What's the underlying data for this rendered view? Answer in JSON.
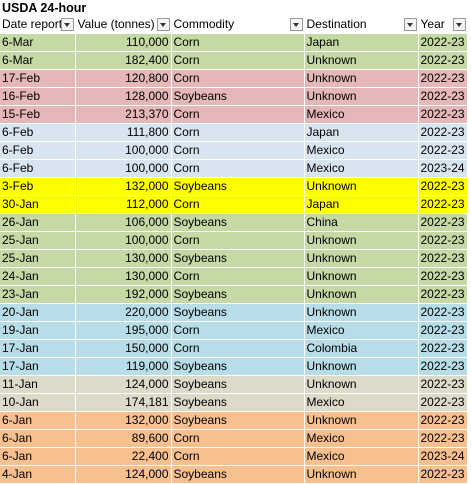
{
  "title": "USDA 24-hour",
  "columns": [
    "Date reported",
    "Value (tonnes)",
    "Commodity",
    "Destination",
    "Year"
  ],
  "colors": {
    "green": "#c5d9a5",
    "pink": "#e6b7b8",
    "lightblue": "#d9e4f1",
    "yellow": "#ffff00",
    "blue": "#b7dde8",
    "beige": "#dcdac9",
    "orange": "#f9c08f"
  },
  "rows": [
    {
      "date": "6-Mar",
      "value": "110,000",
      "commodity": "Corn",
      "destination": "Japan",
      "year": "2022-23",
      "group": "green"
    },
    {
      "date": "6-Mar",
      "value": "182,400",
      "commodity": "Corn",
      "destination": "Unknown",
      "year": "2022-23",
      "group": "green"
    },
    {
      "date": "17-Feb",
      "value": "120,800",
      "commodity": "Corn",
      "destination": "Unknown",
      "year": "2022-23",
      "group": "pink"
    },
    {
      "date": "16-Feb",
      "value": "128,000",
      "commodity": "Soybeans",
      "destination": "Unknown",
      "year": "2022-23",
      "group": "pink"
    },
    {
      "date": "15-Feb",
      "value": "213,370",
      "commodity": "Corn",
      "destination": "Mexico",
      "year": "2022-23",
      "group": "pink"
    },
    {
      "date": "6-Feb",
      "value": "111,800",
      "commodity": "Corn",
      "destination": "Japan",
      "year": "2022-23",
      "group": "lightblue"
    },
    {
      "date": "6-Feb",
      "value": "100,000",
      "commodity": "Corn",
      "destination": "Mexico",
      "year": "2022-23",
      "group": "lightblue"
    },
    {
      "date": "6-Feb",
      "value": "100,000",
      "commodity": "Corn",
      "destination": "Mexico",
      "year": "2023-24",
      "group": "lightblue"
    },
    {
      "date": "3-Feb",
      "value": "132,000",
      "commodity": "Soybeans",
      "destination": "Unknown",
      "year": "2022-23",
      "group": "yellow"
    },
    {
      "date": "30-Jan",
      "value": "112,000",
      "commodity": "Corn",
      "destination": "Japan",
      "year": "2022-23",
      "group": "yellow"
    },
    {
      "date": "26-Jan",
      "value": "106,000",
      "commodity": "Soybeans",
      "destination": "China",
      "year": "2022-23",
      "group": "green"
    },
    {
      "date": "25-Jan",
      "value": "100,000",
      "commodity": "Corn",
      "destination": "Unknown",
      "year": "2022-23",
      "group": "green"
    },
    {
      "date": "25-Jan",
      "value": "130,000",
      "commodity": "Soybeans",
      "destination": "Unknown",
      "year": "2022-23",
      "group": "green"
    },
    {
      "date": "24-Jan",
      "value": "130,000",
      "commodity": "Corn",
      "destination": "Unknown",
      "year": "2022-23",
      "group": "green"
    },
    {
      "date": "23-Jan",
      "value": "192,000",
      "commodity": "Soybeans",
      "destination": "Unknown",
      "year": "2022-23",
      "group": "green"
    },
    {
      "date": "20-Jan",
      "value": "220,000",
      "commodity": "Soybeans",
      "destination": "Unknown",
      "year": "2022-23",
      "group": "blue"
    },
    {
      "date": "19-Jan",
      "value": "195,000",
      "commodity": "Corn",
      "destination": "Mexico",
      "year": "2022-23",
      "group": "blue"
    },
    {
      "date": "17-Jan",
      "value": "150,000",
      "commodity": "Corn",
      "destination": "Colombia",
      "year": "2022-23",
      "group": "blue"
    },
    {
      "date": "17-Jan",
      "value": "119,000",
      "commodity": "Soybeans",
      "destination": "Unknown",
      "year": "2022-23",
      "group": "blue"
    },
    {
      "date": "11-Jan",
      "value": "124,000",
      "commodity": "Soybeans",
      "destination": "Unknown",
      "year": "2022-23",
      "group": "beige"
    },
    {
      "date": "10-Jan",
      "value": "174,181",
      "commodity": "Soybeans",
      "destination": "Mexico",
      "year": "2022-23",
      "group": "beige"
    },
    {
      "date": "6-Jan",
      "value": "132,000",
      "commodity": "Soybeans",
      "destination": "Unknown",
      "year": "2022-23",
      "group": "orange"
    },
    {
      "date": "6-Jan",
      "value": "89,600",
      "commodity": "Corn",
      "destination": "Mexico",
      "year": "2022-23",
      "group": "orange"
    },
    {
      "date": "6-Jan",
      "value": "22,400",
      "commodity": "Corn",
      "destination": "Mexico",
      "year": "2023-24",
      "group": "orange"
    },
    {
      "date": "4-Jan",
      "value": "124,000",
      "commodity": "Soybeans",
      "destination": "Unknown",
      "year": "2022-23",
      "group": "orange"
    }
  ]
}
